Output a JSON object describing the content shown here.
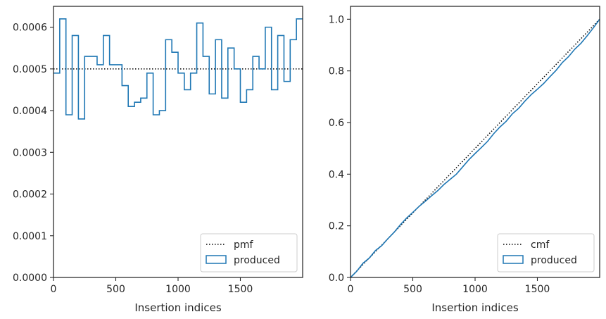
{
  "chart_data": [
    {
      "type": "line",
      "xlabel": "Insertion indices",
      "ylabel": "",
      "xlim": [
        0,
        2000
      ],
      "ylim": [
        0,
        0.00065
      ],
      "xticks": [
        0,
        500,
        1000,
        1500
      ],
      "xtick_labels": [
        "0",
        "500",
        "1000",
        "1500"
      ],
      "yticks": [
        0,
        0.0001,
        0.0002,
        0.0003,
        0.0004,
        0.0005,
        0.0006
      ],
      "ytick_labels": [
        "0.0000",
        "0.0001",
        "0.0002",
        "0.0003",
        "0.0004",
        "0.0005",
        "0.0006"
      ],
      "legend_position": "lower right",
      "grid": false,
      "series": [
        {
          "name": "pmf",
          "style": "dotted",
          "color": "#000000",
          "x": [
            0,
            2000
          ],
          "y": [
            0.0005,
            0.0005
          ]
        },
        {
          "name": "produced",
          "style": "step",
          "color": "#1f77b4",
          "bin_edges": [
            0,
            50,
            100,
            150,
            200,
            250,
            300,
            350,
            400,
            450,
            500,
            550,
            600,
            650,
            700,
            750,
            800,
            850,
            900,
            950,
            1000,
            1050,
            1100,
            1150,
            1200,
            1250,
            1300,
            1350,
            1400,
            1450,
            1500,
            1550,
            1600,
            1650,
            1700,
            1750,
            1800,
            1850,
            1900,
            1950,
            2000
          ],
          "values": [
            0.00049,
            0.00062,
            0.00039,
            0.00058,
            0.00038,
            0.00053,
            0.00053,
            0.00051,
            0.00058,
            0.00051,
            0.00051,
            0.00046,
            0.00041,
            0.00042,
            0.00043,
            0.00049,
            0.00039,
            0.0004,
            0.00057,
            0.00054,
            0.00049,
            0.00045,
            0.00049,
            0.00061,
            0.00053,
            0.00044,
            0.00057,
            0.00043,
            0.00055,
            0.0005,
            0.00042,
            0.00045,
            0.00053,
            0.0005,
            0.0006,
            0.00045,
            0.00058,
            0.00047,
            0.00057,
            0.00062
          ]
        }
      ]
    },
    {
      "type": "line",
      "xlabel": "Insertion indices",
      "ylabel": "",
      "xlim": [
        0,
        2000
      ],
      "ylim": [
        0,
        1.05
      ],
      "xticks": [
        0,
        500,
        1000,
        1500
      ],
      "xtick_labels": [
        "0",
        "500",
        "1000",
        "1500"
      ],
      "yticks": [
        0,
        0.2,
        0.4,
        0.6,
        0.8,
        1.0
      ],
      "ytick_labels": [
        "0.0",
        "0.2",
        "0.4",
        "0.6",
        "0.8",
        "1.0"
      ],
      "legend_position": "lower right",
      "grid": false,
      "series": [
        {
          "name": "cmf",
          "style": "dotted",
          "color": "#000000",
          "x": [
            0,
            2000
          ],
          "y": [
            0,
            1.0
          ]
        },
        {
          "name": "produced",
          "style": "line",
          "color": "#1f77b4",
          "x": [
            0,
            50,
            100,
            150,
            200,
            250,
            300,
            350,
            400,
            450,
            500,
            550,
            600,
            650,
            700,
            750,
            800,
            850,
            900,
            950,
            1000,
            1050,
            1100,
            1150,
            1200,
            1250,
            1300,
            1350,
            1400,
            1450,
            1500,
            1550,
            1600,
            1650,
            1700,
            1750,
            1800,
            1850,
            1900,
            1950,
            2000
          ],
          "y": [
            0,
            0.024,
            0.055,
            0.075,
            0.104,
            0.123,
            0.15,
            0.175,
            0.204,
            0.23,
            0.252,
            0.275,
            0.295,
            0.316,
            0.336,
            0.36,
            0.38,
            0.4,
            0.428,
            0.456,
            0.48,
            0.503,
            0.527,
            0.557,
            0.583,
            0.605,
            0.634,
            0.655,
            0.683,
            0.708,
            0.729,
            0.751,
            0.777,
            0.802,
            0.832,
            0.855,
            0.884,
            0.907,
            0.936,
            0.967,
            1.0
          ]
        }
      ]
    }
  ]
}
